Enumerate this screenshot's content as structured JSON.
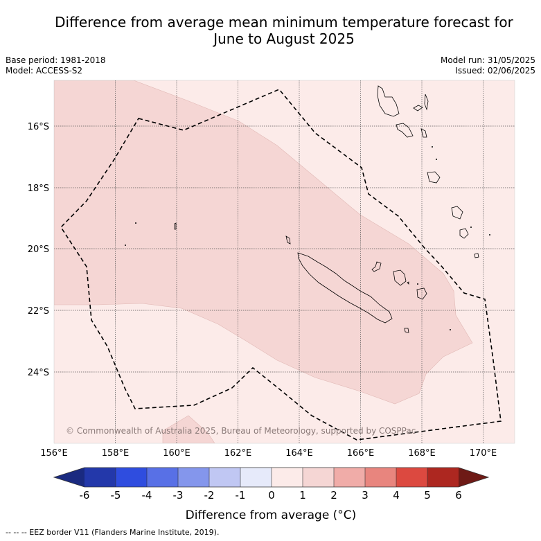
{
  "title": {
    "line1": "Difference from average mean minimum temperature forecast for",
    "line2": "June to August 2025"
  },
  "info_left": {
    "base_period": "Base period: 1981-2018",
    "model": "Model: ACCESS-S2"
  },
  "info_right": {
    "model_run": "Model run: 31/05/2025",
    "issued": "Issued: 02/06/2025"
  },
  "map": {
    "lat_labels": [
      "16°S",
      "18°S",
      "20°S",
      "22°S",
      "24°S"
    ],
    "lon_labels": [
      "156°E",
      "158°E",
      "160°E",
      "162°E",
      "164°E",
      "166°E",
      "168°E",
      "170°E"
    ],
    "copyright": "© Commonwealth of Australia 2025, Bureau of Meteorology, supported by COSPPac",
    "zone_colors": {
      "light": "#fcebe9",
      "medium": "#f5d6d4"
    }
  },
  "colorbar": {
    "tick_labels": [
      "-6",
      "-5",
      "-4",
      "-3",
      "-2",
      "-1",
      "0",
      "1",
      "2",
      "3",
      "4",
      "5",
      "6"
    ],
    "colors": [
      "#1a2a80",
      "#2338aa",
      "#2f4ddf",
      "#5870e6",
      "#8496ec",
      "#c0c7f3",
      "#e6eafa",
      "#fcebe9",
      "#f5d6d4",
      "#f0aca8",
      "#e8857e",
      "#dc4940",
      "#ad2720",
      "#6e1a16"
    ],
    "label": "Difference from average (°C)"
  },
  "footer": "--  --  -- EEZ border V11 (Flanders Marine Institute, 2019)."
}
